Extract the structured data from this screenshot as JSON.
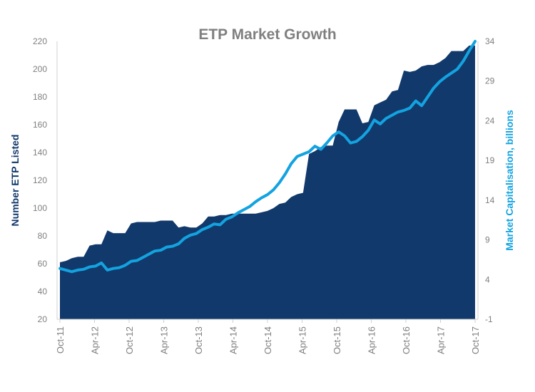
{
  "chart_data": {
    "type": "area",
    "title": "ETP Market Growth",
    "ylabel_left": "Number ETP Listed",
    "ylabel_right": "Market Capitalisation, billions",
    "ylim_left": [
      20,
      220
    ],
    "yticks_left": [
      20,
      40,
      60,
      80,
      100,
      120,
      140,
      160,
      180,
      200,
      220
    ],
    "ylim_right": [
      -1,
      34
    ],
    "yticks_right_labels": [
      "-1",
      "4",
      "9",
      "14",
      "19",
      "24",
      "29",
      "34"
    ],
    "xticks": [
      "Oct-11",
      "Apr-12",
      "Oct-12",
      "Apr-13",
      "Oct-13",
      "Apr-14",
      "Oct-14",
      "Apr-15",
      "Oct-15",
      "Apr-16",
      "Oct-16",
      "Apr-17",
      "Oct-17"
    ],
    "colors": {
      "area": "#12396b",
      "line": "#13a3e0",
      "title": "#808080",
      "ticks": "#7f7f7f"
    },
    "series": [
      {
        "name": "Number ETP Listed",
        "kind": "area",
        "axis": "left",
        "values": [
          61,
          62,
          64,
          65,
          65,
          73,
          74,
          74,
          84,
          82,
          82,
          82,
          89,
          90,
          90,
          90,
          90,
          91,
          91,
          91,
          86,
          87,
          86,
          86,
          89,
          94,
          94,
          95,
          95,
          96,
          96,
          96,
          96,
          96,
          97,
          98,
          100,
          103,
          104,
          108,
          110,
          111,
          139,
          141,
          144,
          145,
          145,
          162,
          171,
          171,
          171,
          161,
          162,
          174,
          176,
          178,
          184,
          185,
          199,
          198,
          199,
          202,
          203,
          203,
          205,
          208,
          213,
          213,
          213,
          217,
          217
        ]
      },
      {
        "name": "Market Capitalisation, billions",
        "kind": "line",
        "axis": "right",
        "values": [
          5.4,
          5.2,
          5.0,
          5.2,
          5.3,
          5.6,
          5.7,
          6.1,
          5.2,
          5.4,
          5.5,
          5.8,
          6.3,
          6.4,
          6.8,
          7.2,
          7.6,
          7.7,
          8.1,
          8.2,
          8.5,
          9.2,
          9.6,
          9.8,
          10.3,
          10.6,
          11.0,
          10.9,
          11.6,
          11.9,
          12.4,
          12.8,
          13.2,
          13.8,
          14.3,
          14.7,
          15.3,
          16.2,
          17.3,
          18.6,
          19.5,
          19.8,
          20.1,
          20.8,
          20.4,
          21.2,
          22.1,
          22.6,
          22.1,
          21.2,
          21.4,
          22.0,
          22.8,
          24.1,
          23.6,
          24.3,
          24.7,
          25.1,
          25.3,
          25.6,
          26.5,
          25.9,
          27.0,
          28.1,
          28.9,
          29.5,
          30.0,
          30.5,
          31.5,
          32.8,
          34.0
        ]
      }
    ]
  }
}
